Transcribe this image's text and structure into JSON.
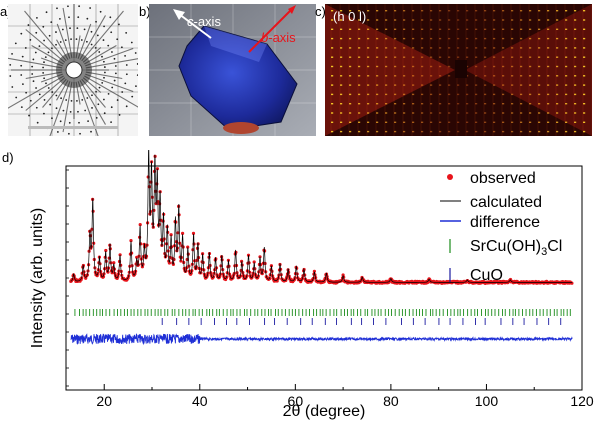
{
  "panels": {
    "a": {
      "label": "a)"
    },
    "b": {
      "label": "b)",
      "c_axis_prefix": "c",
      "c_axis_suffix": "-axis",
      "b_axis_prefix": "b",
      "b_axis_suffix": "-axis"
    },
    "c": {
      "label": "c)",
      "plane": "(h 0 l)"
    },
    "d": {
      "label": "d)"
    }
  },
  "colors": {
    "observed": "#e8141b",
    "calculated": "#000000",
    "difference": "#1f2fd6",
    "phase1": "#1a8c1a",
    "phase2": "#1a1aa0",
    "b_axis_arrow": "#e8141b"
  },
  "chart_data": {
    "type": "line",
    "xlabel_prefix": "2",
    "xlabel_symbol": "θ",
    "xlabel_suffix": " (degree)",
    "ylabel": "Intensity (arb. units)",
    "xlim": [
      12,
      120
    ],
    "x_ticks": [
      20,
      40,
      60,
      80,
      100,
      120
    ],
    "y_ticks_shown": false,
    "legend": {
      "placement": "top-right",
      "entries": [
        {
          "key": "observed",
          "text": "observed"
        },
        {
          "key": "calculated",
          "text": "calculated"
        },
        {
          "key": "difference",
          "text": "difference"
        },
        {
          "key": "phase1",
          "text_main": "SrCu(OH)",
          "text_sub": "3",
          "text_end": "Cl"
        },
        {
          "key": "phase2",
          "text": "CuO"
        }
      ]
    },
    "range": [
      13,
      118
    ],
    "background": 0.12,
    "peaks": [
      [
        13.6,
        0.06
      ],
      [
        15.6,
        0.12
      ],
      [
        17.0,
        0.35
      ],
      [
        17.6,
        0.62
      ],
      [
        19.0,
        0.18
      ],
      [
        20.3,
        0.22
      ],
      [
        21.2,
        0.28
      ],
      [
        22.0,
        0.12
      ],
      [
        23.3,
        0.2
      ],
      [
        25.6,
        0.3
      ],
      [
        26.8,
        0.14
      ],
      [
        27.5,
        0.4
      ],
      [
        28.4,
        0.22
      ],
      [
        29.3,
        0.95
      ],
      [
        29.9,
        0.78
      ],
      [
        30.6,
        0.82
      ],
      [
        31.1,
        0.7
      ],
      [
        31.7,
        0.58
      ],
      [
        32.4,
        0.45
      ],
      [
        33.2,
        0.38
      ],
      [
        34.0,
        0.3
      ],
      [
        34.9,
        0.44
      ],
      [
        35.6,
        0.55
      ],
      [
        36.4,
        0.32
      ],
      [
        37.5,
        0.24
      ],
      [
        38.7,
        0.35
      ],
      [
        39.6,
        0.28
      ],
      [
        40.6,
        0.2
      ],
      [
        42.0,
        0.22
      ],
      [
        43.3,
        0.18
      ],
      [
        44.6,
        0.2
      ],
      [
        46.0,
        0.16
      ],
      [
        47.5,
        0.24
      ],
      [
        48.8,
        0.15
      ],
      [
        50.2,
        0.2
      ],
      [
        51.4,
        0.14
      ],
      [
        52.6,
        0.18
      ],
      [
        53.5,
        0.26
      ],
      [
        55.0,
        0.12
      ],
      [
        56.8,
        0.14
      ],
      [
        58.5,
        0.1
      ],
      [
        60.2,
        0.12
      ],
      [
        61.8,
        0.1
      ],
      [
        64.0,
        0.08
      ],
      [
        66.5,
        0.07
      ],
      [
        70.0,
        0.05
      ],
      [
        74.0,
        0.04
      ],
      [
        80.0,
        0.03
      ],
      [
        88.0,
        0.025
      ],
      [
        96.0,
        0.02
      ],
      [
        105.0,
        0.02
      ]
    ],
    "phase1_ticks_from": 14,
    "phase1_ticks_step": 0.72,
    "phase2_ticks_from": 32.5,
    "phase2_ticks_step": 2.6
  }
}
